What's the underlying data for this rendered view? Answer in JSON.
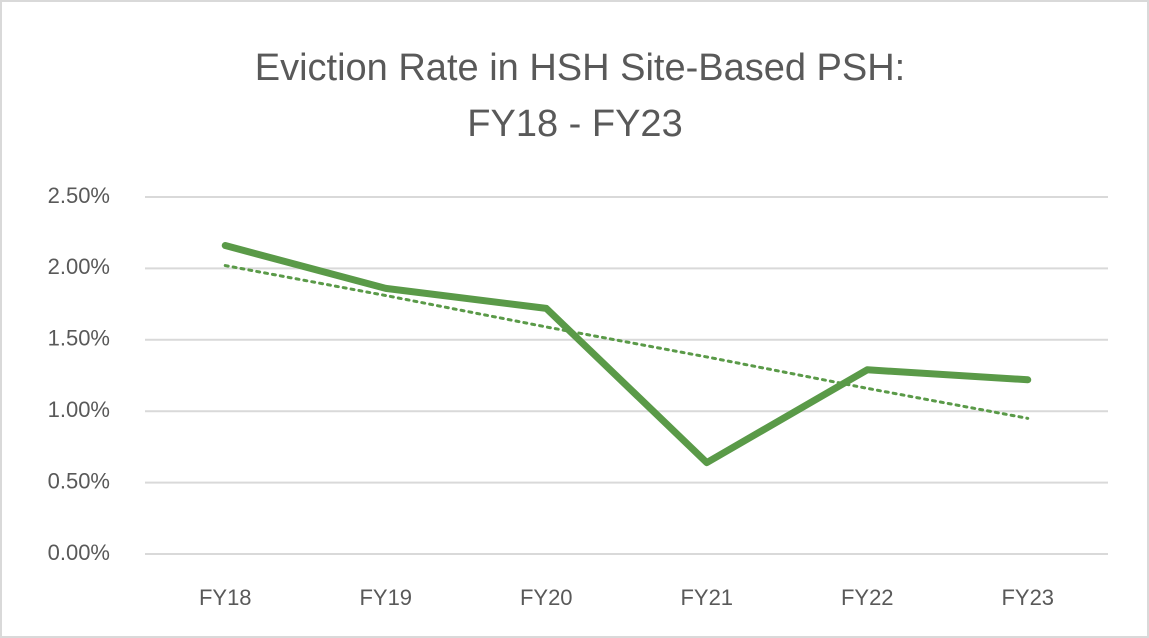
{
  "chart_data": {
    "type": "line",
    "title": [
      "Eviction Rate in HSH Site-Based PSH:",
      "FY18 - FY23"
    ],
    "categories": [
      "FY18",
      "FY19",
      "FY20",
      "FY21",
      "FY22",
      "FY23"
    ],
    "series": [
      {
        "color": "#5a9a48",
        "values": [
          2.16,
          1.86,
          1.72,
          0.64,
          1.29,
          1.22
        ]
      }
    ],
    "trendline": {
      "color": "#5a9a48",
      "values": [
        2.02,
        1.81,
        1.59,
        1.38,
        1.16,
        0.95
      ]
    },
    "ylim": [
      0,
      2.5
    ],
    "yticks": [
      {
        "value": 0,
        "label": "0.00%"
      },
      {
        "value": 0.5,
        "label": "0.50%"
      },
      {
        "value": 1,
        "label": "1.00%"
      },
      {
        "value": 1.5,
        "label": "1.50%"
      },
      {
        "value": 2,
        "label": "2.00%"
      },
      {
        "value": 2.5,
        "label": "2.50%"
      }
    ],
    "grid": true
  }
}
